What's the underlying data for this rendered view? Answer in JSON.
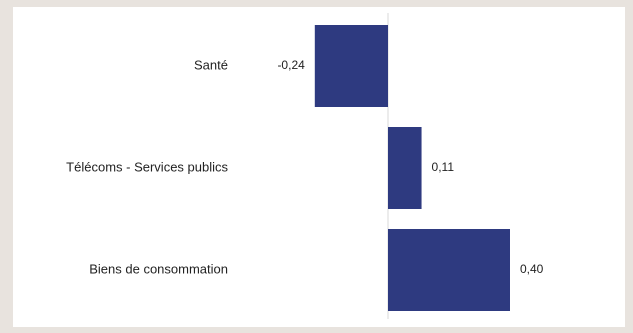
{
  "chart_data": {
    "type": "bar",
    "orientation": "horizontal",
    "categories": [
      "Santé",
      "Télécoms - Services publics",
      "Biens de consommation"
    ],
    "values": [
      -0.24,
      0.11,
      0.4
    ],
    "value_labels": [
      "-0,24",
      "0,11",
      "0,40"
    ],
    "title": "",
    "xlabel": "",
    "ylabel": "",
    "xlim": [
      -0.24,
      0.4
    ],
    "grid": false,
    "legend": "none",
    "colors": {
      "bar": "#2e3a80",
      "zero_line": "#d9d9d9"
    }
  }
}
